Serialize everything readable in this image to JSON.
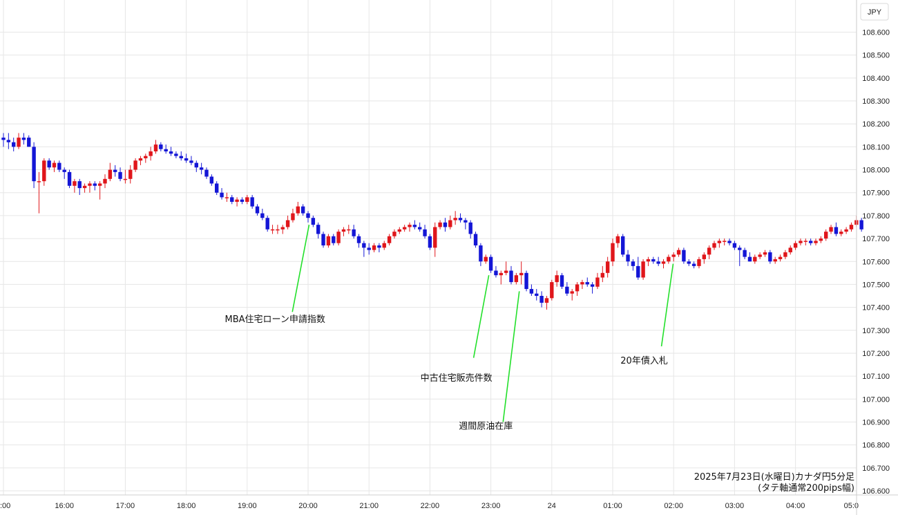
{
  "chart_data": {
    "type": "candlestick",
    "currency_label": "JPY",
    "info_line1": "2025年7月23日(水曜日)カナダ円5分足",
    "info_line2": "(タテ軸通常200pips幅)",
    "ylim": [
      106.6,
      108.7
    ],
    "y_ticks": [
      "106.600",
      "106.700",
      "106.800",
      "106.900",
      "107.000",
      "107.100",
      "107.200",
      "107.300",
      "107.400",
      "107.500",
      "107.600",
      "107.700",
      "107.800",
      "107.900",
      "108.000",
      "108.100",
      "108.200",
      "108.300",
      "108.400",
      "108.500",
      "108.600"
    ],
    "x_ticks": [
      {
        "label": ":00",
        "t": 0
      },
      {
        "label": "16:00",
        "t": 12
      },
      {
        "label": "17:00",
        "t": 24
      },
      {
        "label": "18:00",
        "t": 36
      },
      {
        "label": "19:00",
        "t": 48
      },
      {
        "label": "20:00",
        "t": 60
      },
      {
        "label": "21:00",
        "t": 72
      },
      {
        "label": "22:00",
        "t": 84
      },
      {
        "label": "23:00",
        "t": 96
      },
      {
        "label": "24",
        "t": 108
      },
      {
        "label": "01:00",
        "t": 120
      },
      {
        "label": "02:00",
        "t": 132
      },
      {
        "label": "03:00",
        "t": 144
      },
      {
        "label": "04:00",
        "t": 156
      },
      {
        "label": "05:0",
        "t": 168
      }
    ],
    "colors": {
      "up": "#e0161b",
      "down": "#1416d6",
      "leader": "#22e02a",
      "grid": "#e6e6e6"
    },
    "candles": [
      [
        108.14,
        108.16,
        108.1,
        108.13
      ],
      [
        108.13,
        108.16,
        108.09,
        108.12
      ],
      [
        108.12,
        108.14,
        108.08,
        108.1
      ],
      [
        108.1,
        108.16,
        108.09,
        108.14
      ],
      [
        108.14,
        108.16,
        108.11,
        108.13
      ],
      [
        108.14,
        108.15,
        108.1,
        108.1
      ],
      [
        108.1,
        108.12,
        107.92,
        107.95
      ],
      [
        107.95,
        107.99,
        107.81,
        107.95
      ],
      [
        107.95,
        108.05,
        107.93,
        108.04
      ],
      [
        108.04,
        108.05,
        108.0,
        108.01
      ],
      [
        108.01,
        108.04,
        107.99,
        108.03
      ],
      [
        108.03,
        108.04,
        107.99,
        108.0
      ],
      [
        108.0,
        108.01,
        107.96,
        107.99
      ],
      [
        107.99,
        108.0,
        107.92,
        107.93
      ],
      [
        107.93,
        107.96,
        107.9,
        107.95
      ],
      [
        107.95,
        107.96,
        107.89,
        107.92
      ],
      [
        107.92,
        107.94,
        107.9,
        107.93
      ],
      [
        107.93,
        107.95,
        107.9,
        107.94
      ],
      [
        107.94,
        107.95,
        107.91,
        107.93
      ],
      [
        107.93,
        107.95,
        107.87,
        107.94
      ],
      [
        107.94,
        107.98,
        107.92,
        107.96
      ],
      [
        107.96,
        108.03,
        107.95,
        108.0
      ],
      [
        108.0,
        108.02,
        107.97,
        107.99
      ],
      [
        107.99,
        108.01,
        107.95,
        107.96
      ],
      [
        107.96,
        108.0,
        107.94,
        107.96
      ],
      [
        107.96,
        108.02,
        107.94,
        108.0
      ],
      [
        108.0,
        108.05,
        107.99,
        108.04
      ],
      [
        108.04,
        108.06,
        108.02,
        108.05
      ],
      [
        108.05,
        108.07,
        108.03,
        108.06
      ],
      [
        108.06,
        108.1,
        108.04,
        108.08
      ],
      [
        108.08,
        108.13,
        108.07,
        108.11
      ],
      [
        108.11,
        108.12,
        108.08,
        108.09
      ],
      [
        108.09,
        108.11,
        108.07,
        108.08
      ],
      [
        108.08,
        108.1,
        108.06,
        108.07
      ],
      [
        108.07,
        108.08,
        108.05,
        108.06
      ],
      [
        108.06,
        108.08,
        108.04,
        108.05
      ],
      [
        108.05,
        108.07,
        108.03,
        108.04
      ],
      [
        108.04,
        108.06,
        108.02,
        108.03
      ],
      [
        108.03,
        108.04,
        107.99,
        108.01
      ],
      [
        108.01,
        108.03,
        107.98,
        108.0
      ],
      [
        108.0,
        108.01,
        107.96,
        107.97
      ],
      [
        107.97,
        107.98,
        107.93,
        107.94
      ],
      [
        107.94,
        107.95,
        107.89,
        107.9
      ],
      [
        107.9,
        107.92,
        107.87,
        107.88
      ],
      [
        107.88,
        107.9,
        107.86,
        107.88
      ],
      [
        107.88,
        107.89,
        107.85,
        107.86
      ],
      [
        107.86,
        107.88,
        107.84,
        107.87
      ],
      [
        107.87,
        107.88,
        107.85,
        107.86
      ],
      [
        107.86,
        107.89,
        107.85,
        107.88
      ],
      [
        107.88,
        107.89,
        107.83,
        107.84
      ],
      [
        107.84,
        107.85,
        107.8,
        107.81
      ],
      [
        107.81,
        107.83,
        107.78,
        107.79
      ],
      [
        107.79,
        107.8,
        107.73,
        107.74
      ],
      [
        107.74,
        107.76,
        107.72,
        107.74
      ],
      [
        107.74,
        107.76,
        107.72,
        107.74
      ],
      [
        107.74,
        107.76,
        107.72,
        107.75
      ],
      [
        107.75,
        107.8,
        107.74,
        107.78
      ],
      [
        107.78,
        107.83,
        107.77,
        107.81
      ],
      [
        107.81,
        107.86,
        107.8,
        107.84
      ],
      [
        107.84,
        107.85,
        107.8,
        107.81
      ],
      [
        107.81,
        107.82,
        107.77,
        107.79
      ],
      [
        107.79,
        107.8,
        107.75,
        107.76
      ],
      [
        107.76,
        107.77,
        107.7,
        107.72
      ],
      [
        107.72,
        107.73,
        107.66,
        107.67
      ],
      [
        107.67,
        107.72,
        107.66,
        107.71
      ],
      [
        107.71,
        107.72,
        107.67,
        107.68
      ],
      [
        107.68,
        107.74,
        107.67,
        107.73
      ],
      [
        107.73,
        107.75,
        107.71,
        107.74
      ],
      [
        107.74,
        107.76,
        107.72,
        107.74
      ],
      [
        107.74,
        107.76,
        107.7,
        107.71
      ],
      [
        107.71,
        107.72,
        107.66,
        107.68
      ],
      [
        107.68,
        107.69,
        107.62,
        107.66
      ],
      [
        107.66,
        107.68,
        107.63,
        107.65
      ],
      [
        107.65,
        107.68,
        107.64,
        107.67
      ],
      [
        107.67,
        107.68,
        107.64,
        107.66
      ],
      [
        107.66,
        107.69,
        107.65,
        107.68
      ],
      [
        107.68,
        107.72,
        107.67,
        107.71
      ],
      [
        107.71,
        107.74,
        107.7,
        107.73
      ],
      [
        107.73,
        107.75,
        107.72,
        107.74
      ],
      [
        107.74,
        107.76,
        107.73,
        107.75
      ],
      [
        107.75,
        107.77,
        107.73,
        107.76
      ],
      [
        107.76,
        107.78,
        107.74,
        107.75
      ],
      [
        107.75,
        107.77,
        107.73,
        107.74
      ],
      [
        107.74,
        107.76,
        107.7,
        107.71
      ],
      [
        107.71,
        107.72,
        107.65,
        107.66
      ],
      [
        107.66,
        107.77,
        107.62,
        107.75
      ],
      [
        107.75,
        107.78,
        107.74,
        107.77
      ],
      [
        107.77,
        107.79,
        107.73,
        107.75
      ],
      [
        107.75,
        107.8,
        107.74,
        107.78
      ],
      [
        107.78,
        107.82,
        107.76,
        107.79
      ],
      [
        107.79,
        107.81,
        107.77,
        107.78
      ],
      [
        107.78,
        107.79,
        107.74,
        107.77
      ],
      [
        107.77,
        107.78,
        107.7,
        107.72
      ],
      [
        107.72,
        107.73,
        107.66,
        107.67
      ],
      [
        107.67,
        107.68,
        107.58,
        107.6
      ],
      [
        107.6,
        107.63,
        107.59,
        107.62
      ],
      [
        107.62,
        107.63,
        107.55,
        107.56
      ],
      [
        107.56,
        107.58,
        107.53,
        107.54
      ],
      [
        107.54,
        107.56,
        107.5,
        107.55
      ],
      [
        107.55,
        107.6,
        107.54,
        107.56
      ],
      [
        107.56,
        107.58,
        107.5,
        107.51
      ],
      [
        107.51,
        107.55,
        107.5,
        107.54
      ],
      [
        107.54,
        107.6,
        107.5,
        107.55
      ],
      [
        107.55,
        107.56,
        107.47,
        107.48
      ],
      [
        107.48,
        107.5,
        107.45,
        107.46
      ],
      [
        107.46,
        107.48,
        107.43,
        107.45
      ],
      [
        107.45,
        107.47,
        107.4,
        107.42
      ],
      [
        107.42,
        107.45,
        107.39,
        107.44
      ],
      [
        107.44,
        107.52,
        107.43,
        107.51
      ],
      [
        107.51,
        107.56,
        107.49,
        107.54
      ],
      [
        107.54,
        107.55,
        107.48,
        107.49
      ],
      [
        107.49,
        107.51,
        107.45,
        107.46
      ],
      [
        107.46,
        107.48,
        107.43,
        107.47
      ],
      [
        107.47,
        107.51,
        107.45,
        107.5
      ],
      [
        107.5,
        107.52,
        107.48,
        107.51
      ],
      [
        107.51,
        107.53,
        107.49,
        107.5
      ],
      [
        107.5,
        107.51,
        107.46,
        107.49
      ],
      [
        107.49,
        107.55,
        107.48,
        107.53
      ],
      [
        107.53,
        107.58,
        107.51,
        107.55
      ],
      [
        107.55,
        107.62,
        107.53,
        107.6
      ],
      [
        107.6,
        107.7,
        107.58,
        107.68
      ],
      [
        107.68,
        107.72,
        107.66,
        107.71
      ],
      [
        107.71,
        107.72,
        107.62,
        107.63
      ],
      [
        107.63,
        107.65,
        107.58,
        107.6
      ],
      [
        107.6,
        107.61,
        107.56,
        107.58
      ],
      [
        107.58,
        107.62,
        107.52,
        107.53
      ],
      [
        107.53,
        107.61,
        107.52,
        107.6
      ],
      [
        107.6,
        107.62,
        107.58,
        107.61
      ],
      [
        107.61,
        107.62,
        107.59,
        107.6
      ],
      [
        107.6,
        107.62,
        107.58,
        107.59
      ],
      [
        107.59,
        107.61,
        107.57,
        107.6
      ],
      [
        107.6,
        107.63,
        107.59,
        107.62
      ],
      [
        107.62,
        107.64,
        107.6,
        107.63
      ],
      [
        107.63,
        107.66,
        107.62,
        107.65
      ],
      [
        107.65,
        107.66,
        107.59,
        107.6
      ],
      [
        107.6,
        107.61,
        107.58,
        107.59
      ],
      [
        107.59,
        107.6,
        107.57,
        107.58
      ],
      [
        107.58,
        107.62,
        107.57,
        107.61
      ],
      [
        107.61,
        107.64,
        107.59,
        107.63
      ],
      [
        107.63,
        107.67,
        107.61,
        107.66
      ],
      [
        107.66,
        107.69,
        107.65,
        107.68
      ],
      [
        107.68,
        107.7,
        107.66,
        107.69
      ],
      [
        107.69,
        107.7,
        107.67,
        107.69
      ],
      [
        107.69,
        107.7,
        107.67,
        107.68
      ],
      [
        107.68,
        107.69,
        107.65,
        107.66
      ],
      [
        107.66,
        107.67,
        107.58,
        107.65
      ],
      [
        107.65,
        107.66,
        107.61,
        107.62
      ],
      [
        107.62,
        107.64,
        107.6,
        107.6
      ],
      [
        107.6,
        107.63,
        107.59,
        107.62
      ],
      [
        107.62,
        107.64,
        107.61,
        107.63
      ],
      [
        107.63,
        107.65,
        107.62,
        107.64
      ],
      [
        107.64,
        107.65,
        107.59,
        107.6
      ],
      [
        107.6,
        107.62,
        107.59,
        107.61
      ],
      [
        107.61,
        107.63,
        107.6,
        107.62
      ],
      [
        107.62,
        107.65,
        107.61,
        107.64
      ],
      [
        107.64,
        107.67,
        107.63,
        107.66
      ],
      [
        107.66,
        107.69,
        107.65,
        107.68
      ],
      [
        107.68,
        107.7,
        107.67,
        107.69
      ],
      [
        107.69,
        107.7,
        107.67,
        107.69
      ],
      [
        107.69,
        107.7,
        107.67,
        107.68
      ],
      [
        107.68,
        107.7,
        107.67,
        107.69
      ],
      [
        107.69,
        107.71,
        107.68,
        107.7
      ],
      [
        107.7,
        107.74,
        107.69,
        107.73
      ],
      [
        107.73,
        107.76,
        107.72,
        107.75
      ],
      [
        107.75,
        107.77,
        107.71,
        107.72
      ],
      [
        107.72,
        107.74,
        107.71,
        107.73
      ],
      [
        107.73,
        107.75,
        107.72,
        107.74
      ],
      [
        107.74,
        107.77,
        107.73,
        107.76
      ],
      [
        107.76,
        107.8,
        107.75,
        107.78
      ],
      [
        107.78,
        107.79,
        107.73,
        107.74
      ]
    ],
    "annotations": [
      {
        "text": "MBA住宅ローン申請指数",
        "t": 60.2,
        "price": 107.76,
        "end_price": 107.38,
        "label_t": 53.5,
        "label_price": 107.335
      },
      {
        "text": "中古住宅販売件数",
        "t": 95.6,
        "price": 107.54,
        "end_price": 107.18,
        "label_t": 89.2,
        "label_price": 107.08
      },
      {
        "text": "週間原油在庫",
        "t": 101.6,
        "price": 107.47,
        "end_price": 106.9,
        "label_t": 95.0,
        "label_price": 106.87
      },
      {
        "text": "20年債入札",
        "t": 131.9,
        "price": 107.59,
        "end_price": 107.23,
        "label_t": 126.2,
        "label_price": 107.155
      }
    ]
  }
}
